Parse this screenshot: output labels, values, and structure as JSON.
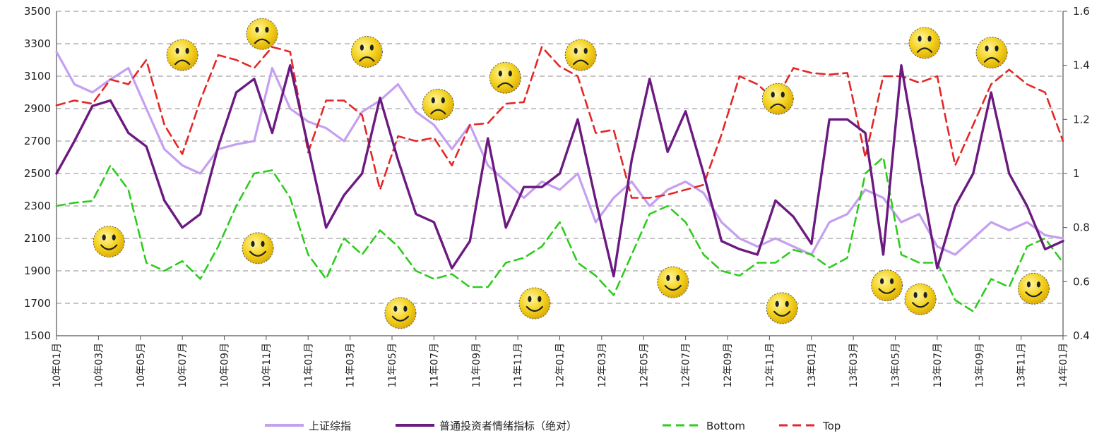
{
  "chart_data": {
    "type": "line",
    "title": "",
    "x_labels": [
      "10年01月",
      "10年03月",
      "10年05月",
      "10年07月",
      "10年09月",
      "10年11月",
      "11年01月",
      "11年03月",
      "11年05月",
      "11年07月",
      "11年09月",
      "11年11月",
      "12年01月",
      "12年03月",
      "12年05月",
      "12年07月",
      "12年09月",
      "12年11月",
      "13年01月",
      "13年03月",
      "13年05月",
      "13年07月",
      "13年09月",
      "13年11月",
      "14年01月"
    ],
    "left_axis": {
      "min": 1500,
      "max": 3500,
      "ticks": [
        1500,
        1700,
        1900,
        2100,
        2300,
        2500,
        2700,
        2900,
        3100,
        3300,
        3500
      ]
    },
    "right_axis": {
      "min": 0.4,
      "max": 1.6,
      "ticks": [
        "0.4",
        "0.6",
        "0.8",
        "1",
        "1.2",
        "1.4",
        "1.6"
      ]
    },
    "grid": "dashed horizontal",
    "legend_position": "bottom",
    "series": [
      {
        "name": "上证综指",
        "axis": "left",
        "color": "#c59ff0",
        "style": "solid",
        "values": [
          3250,
          3050,
          3000,
          3080,
          3150,
          2900,
          2650,
          2550,
          2500,
          2650,
          2680,
          2700,
          3150,
          2900,
          2820,
          2780,
          2700,
          2880,
          2950,
          3050,
          2880,
          2800,
          2650,
          2800,
          2550,
          2450,
          2350,
          2450,
          2400,
          2500,
          2200,
          2350,
          2450,
          2300,
          2400,
          2450,
          2380,
          2200,
          2100,
          2050,
          2100,
          2050,
          2000,
          2200,
          2250,
          2400,
          2350,
          2200,
          2250,
          2050,
          2000,
          2100,
          2200,
          2150,
          2200,
          2120,
          2100
        ]
      },
      {
        "name": "普通投资者情绪指标（绝对）",
        "axis": "right",
        "color": "#6b1a80",
        "style": "solid",
        "values": [
          1.0,
          1.12,
          1.25,
          1.27,
          1.15,
          1.1,
          0.9,
          0.8,
          0.85,
          1.1,
          1.3,
          1.35,
          1.15,
          1.4,
          1.1,
          0.8,
          0.92,
          1.0,
          1.28,
          1.05,
          0.85,
          0.82,
          0.65,
          0.75,
          1.13,
          0.8,
          0.95,
          0.95,
          1.0,
          1.2,
          0.9,
          0.62,
          1.05,
          1.35,
          1.08,
          1.23,
          1.0,
          0.75,
          0.72,
          0.7,
          0.9,
          0.84,
          0.74,
          1.2,
          1.2,
          1.15,
          0.7,
          1.4,
          1.02,
          0.65,
          0.88,
          1.0,
          1.3,
          1.0,
          0.88,
          0.72,
          0.75
        ]
      },
      {
        "name": "Bottom",
        "axis": "left",
        "color": "#2ecc1e",
        "style": "dashed",
        "values": [
          2300,
          2320,
          2330,
          2550,
          2400,
          1950,
          1900,
          1960,
          1850,
          2050,
          2300,
          2500,
          2520,
          2350,
          2000,
          1850,
          2100,
          2000,
          2150,
          2050,
          1900,
          1850,
          1880,
          1800,
          1800,
          1950,
          1980,
          2050,
          2200,
          1950,
          1870,
          1750,
          2000,
          2250,
          2300,
          2200,
          2000,
          1900,
          1870,
          1950,
          1950,
          2030,
          2000,
          1920,
          1980,
          2500,
          2600,
          2000,
          1950,
          1950,
          1720,
          1650,
          1850,
          1800,
          2050,
          2100,
          1950
        ]
      },
      {
        "name": "Top",
        "axis": "left",
        "color": "#e52626",
        "style": "dashed",
        "values": [
          2920,
          2950,
          2930,
          3080,
          3050,
          3200,
          2800,
          2620,
          2950,
          3230,
          3200,
          3150,
          3280,
          3250,
          2630,
          2950,
          2950,
          2860,
          2400,
          2730,
          2700,
          2720,
          2550,
          2800,
          2810,
          2930,
          2940,
          3280,
          3160,
          3100,
          2750,
          2770,
          2350,
          2350,
          2370,
          2400,
          2430,
          2740,
          3100,
          3050,
          2950,
          3150,
          3120,
          3110,
          3120,
          2600,
          3100,
          3100,
          3060,
          3100,
          2550,
          2800,
          3050,
          3140,
          3050,
          3000,
          2700
        ]
      }
    ],
    "annotations": {
      "sad_faces": [
        [
          3.0,
          3230
        ],
        [
          4.9,
          3360
        ],
        [
          7.4,
          3250
        ],
        [
          9.1,
          2925
        ],
        [
          10.7,
          3090
        ],
        [
          12.5,
          3230
        ],
        [
          17.2,
          2960
        ],
        [
          20.7,
          3305
        ],
        [
          22.3,
          3245
        ]
      ],
      "happy_faces": [
        [
          1.25,
          2080
        ],
        [
          4.8,
          2040
        ],
        [
          8.2,
          1640
        ],
        [
          11.4,
          1700
        ],
        [
          14.7,
          1830
        ],
        [
          17.3,
          1670
        ],
        [
          19.8,
          1810
        ],
        [
          20.6,
          1725
        ],
        [
          23.3,
          1790
        ]
      ]
    }
  }
}
